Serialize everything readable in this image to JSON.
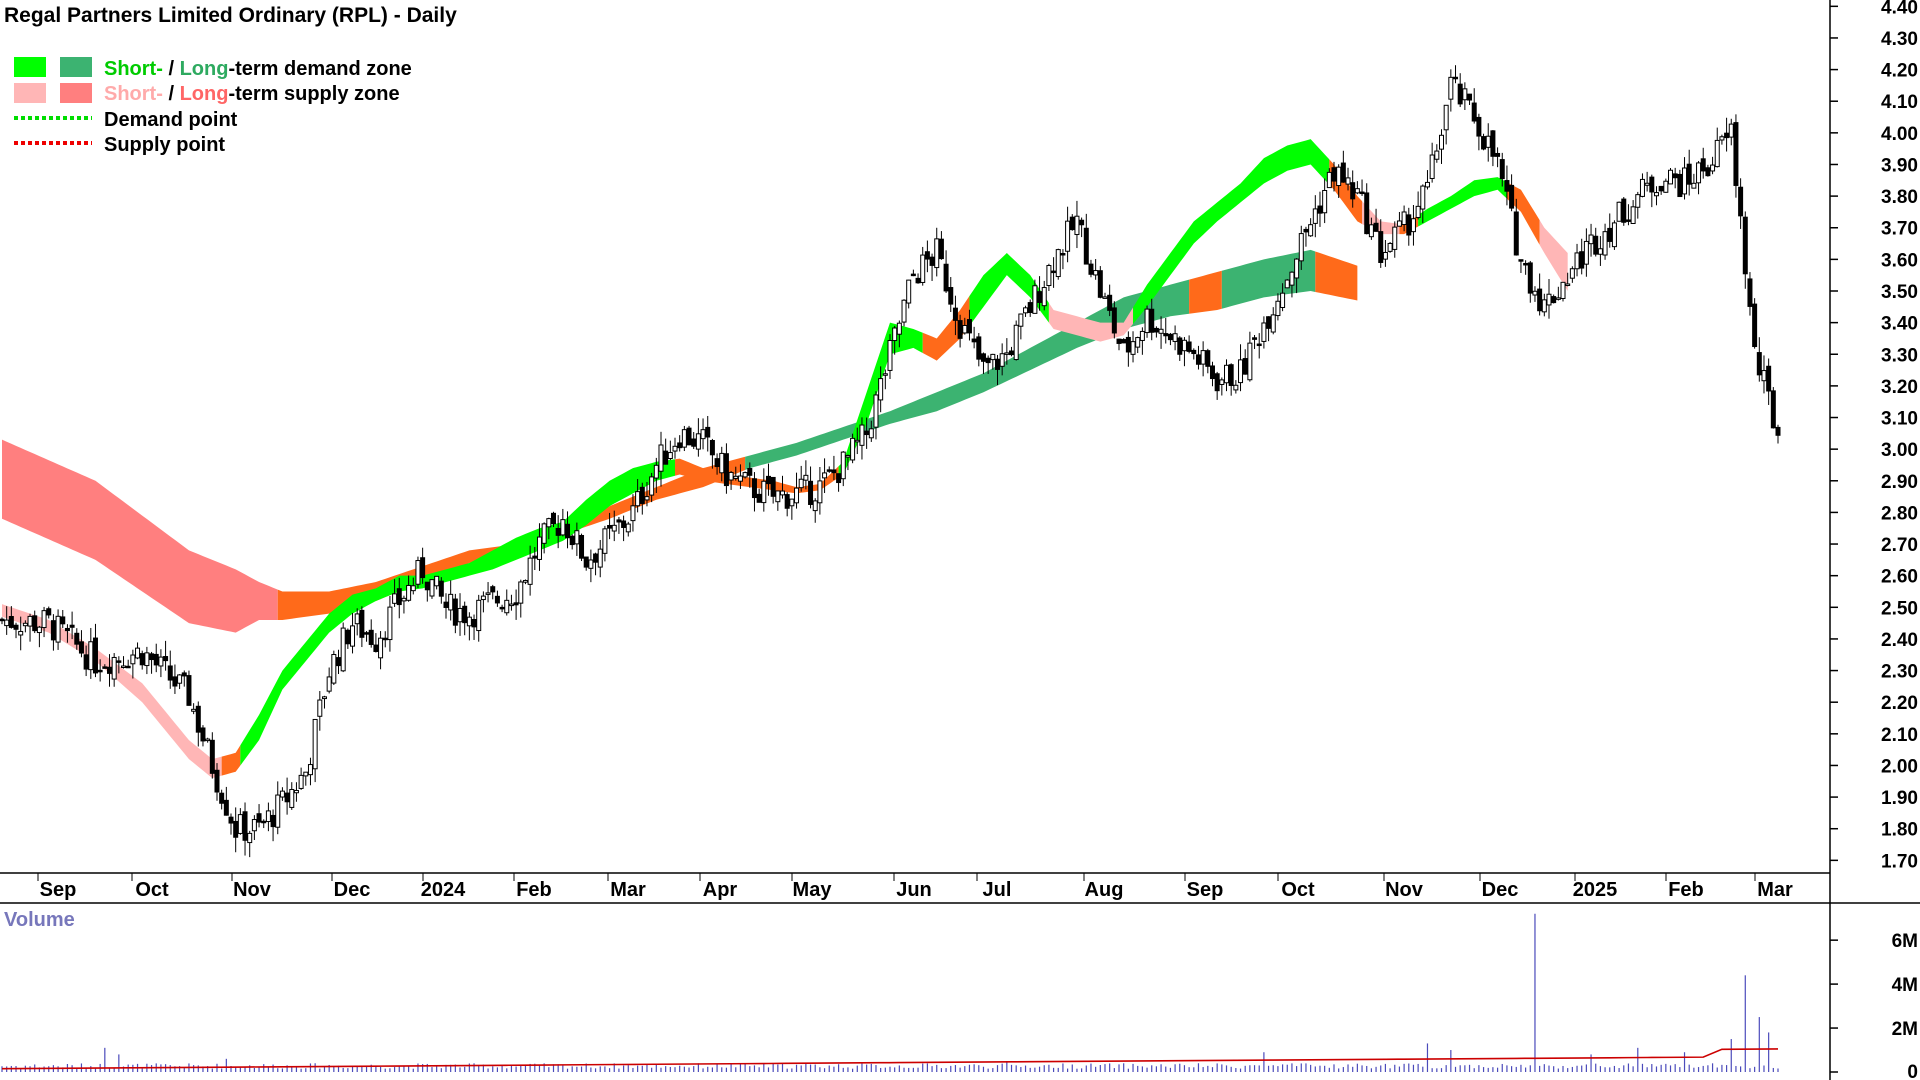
{
  "title": "Regal Partners Limited Ordinary (RPL) - Daily",
  "legend": {
    "demand_zone": {
      "short": "Short-",
      "sep": " / ",
      "long": "Long",
      "rest": "-term demand zone"
    },
    "supply_zone": {
      "short": "Short-",
      "sep": " / ",
      "long": "Long",
      "rest": "-term supply zone"
    },
    "demand_point": "Demand point",
    "supply_point": "Supply point"
  },
  "colors": {
    "short_demand": "#00ff00",
    "long_demand": "#3cb371",
    "short_supply": "#ffb6b6",
    "long_supply": "#ff7f7f",
    "short_transition": "#ff6a1a",
    "long_transition": "#ff6a1a",
    "candle": "#000000",
    "volume_bar": "#4b4bbb",
    "volume_avg": "#cc0000",
    "volume_title": "#7777bb"
  },
  "chart_data": {
    "type": "candlestick",
    "yaxis_ticks": [
      "1.70",
      "1.80",
      "1.90",
      "2.00",
      "2.10",
      "2.20",
      "2.30",
      "2.40",
      "2.50",
      "2.60",
      "2.70",
      "2.80",
      "2.90",
      "3.00",
      "3.10",
      "3.20",
      "3.30",
      "3.40",
      "3.50",
      "3.60",
      "3.70",
      "3.80",
      "3.90",
      "4.00",
      "4.10",
      "4.20",
      "4.30",
      "4.40"
    ],
    "ylim": [
      1.66,
      4.42
    ],
    "xaxis_labels": [
      "Sep",
      "Oct",
      "Nov",
      "Dec",
      "2024",
      "Feb",
      "Mar",
      "Apr",
      "May",
      "Jun",
      "Jul",
      "Aug",
      "Sep",
      "Oct",
      "Nov",
      "Dec",
      "2025",
      "Feb",
      "Mar"
    ],
    "price_path": [
      [
        0,
        2.46
      ],
      [
        10,
        2.45
      ],
      [
        20,
        2.33
      ],
      [
        30,
        2.36
      ],
      [
        40,
        2.22
      ],
      [
        45,
        2.0
      ],
      [
        50,
        1.8
      ],
      [
        55,
        1.8
      ],
      [
        60,
        1.88
      ],
      [
        65,
        1.98
      ],
      [
        70,
        2.3
      ],
      [
        75,
        2.45
      ],
      [
        80,
        2.4
      ],
      [
        85,
        2.52
      ],
      [
        90,
        2.62
      ],
      [
        95,
        2.5
      ],
      [
        100,
        2.48
      ],
      [
        105,
        2.52
      ],
      [
        110,
        2.55
      ],
      [
        115,
        2.7
      ],
      [
        120,
        2.78
      ],
      [
        125,
        2.65
      ],
      [
        130,
        2.72
      ],
      [
        135,
        2.8
      ],
      [
        140,
        2.95
      ],
      [
        145,
        3.05
      ],
      [
        150,
        3.02
      ],
      [
        155,
        2.92
      ],
      [
        160,
        2.88
      ],
      [
        165,
        2.85
      ],
      [
        170,
        2.86
      ],
      [
        175,
        2.88
      ],
      [
        180,
        2.95
      ],
      [
        185,
        3.05
      ],
      [
        190,
        3.3
      ],
      [
        195,
        3.55
      ],
      [
        200,
        3.62
      ],
      [
        205,
        3.4
      ],
      [
        210,
        3.25
      ],
      [
        215,
        3.3
      ],
      [
        220,
        3.45
      ],
      [
        225,
        3.6
      ],
      [
        230,
        3.72
      ],
      [
        235,
        3.5
      ],
      [
        240,
        3.3
      ],
      [
        245,
        3.42
      ],
      [
        250,
        3.36
      ],
      [
        255,
        3.3
      ],
      [
        260,
        3.22
      ],
      [
        265,
        3.24
      ],
      [
        270,
        3.4
      ],
      [
        275,
        3.55
      ],
      [
        280,
        3.72
      ],
      [
        285,
        3.88
      ],
      [
        290,
        3.8
      ],
      [
        295,
        3.62
      ],
      [
        300,
        3.7
      ],
      [
        305,
        3.82
      ],
      [
        310,
        4.15
      ],
      [
        315,
        4.05
      ],
      [
        320,
        3.9
      ],
      [
        325,
        3.6
      ],
      [
        330,
        3.45
      ],
      [
        335,
        3.55
      ],
      [
        340,
        3.65
      ],
      [
        345,
        3.72
      ],
      [
        350,
        3.8
      ],
      [
        355,
        3.86
      ],
      [
        360,
        3.84
      ],
      [
        365,
        3.9
      ],
      [
        370,
        4.0
      ],
      [
        375,
        3.3
      ],
      [
        380,
        3.05
      ]
    ],
    "short_zone_path": [
      [
        0,
        2.47,
        2.51
      ],
      [
        10,
        2.42,
        2.46
      ],
      [
        20,
        2.33,
        2.37
      ],
      [
        30,
        2.2,
        2.26
      ],
      [
        40,
        2.02,
        2.08
      ],
      [
        45,
        1.96,
        2.02
      ],
      [
        50,
        1.98,
        2.04
      ],
      [
        55,
        2.08,
        2.16
      ],
      [
        60,
        2.24,
        2.3
      ],
      [
        65,
        2.33,
        2.39
      ],
      [
        70,
        2.42,
        2.48
      ],
      [
        75,
        2.48,
        2.54
      ],
      [
        80,
        2.52,
        2.56
      ],
      [
        85,
        2.55,
        2.6
      ],
      [
        90,
        2.56,
        2.6
      ],
      [
        95,
        2.58,
        2.62
      ],
      [
        100,
        2.6,
        2.64
      ],
      [
        105,
        2.62,
        2.68
      ],
      [
        110,
        2.65,
        2.72
      ],
      [
        115,
        2.68,
        2.75
      ],
      [
        120,
        2.71,
        2.77
      ],
      [
        125,
        2.76,
        2.84
      ],
      [
        130,
        2.82,
        2.9
      ],
      [
        135,
        2.86,
        2.94
      ],
      [
        140,
        2.9,
        2.96
      ],
      [
        145,
        2.92,
        2.97
      ],
      [
        150,
        2.9,
        2.94
      ],
      [
        155,
        2.89,
        2.92
      ],
      [
        160,
        2.88,
        2.91
      ],
      [
        165,
        2.87,
        2.9
      ],
      [
        170,
        2.86,
        2.88
      ],
      [
        175,
        2.87,
        2.89
      ],
      [
        180,
        2.92,
        2.96
      ],
      [
        185,
        3.08,
        3.18
      ],
      [
        190,
        3.3,
        3.4
      ],
      [
        195,
        3.32,
        3.38
      ],
      [
        200,
        3.28,
        3.35
      ],
      [
        205,
        3.35,
        3.44
      ],
      [
        210,
        3.45,
        3.55
      ],
      [
        215,
        3.55,
        3.62
      ],
      [
        220,
        3.48,
        3.55
      ],
      [
        225,
        3.38,
        3.44
      ],
      [
        230,
        3.36,
        3.42
      ],
      [
        235,
        3.34,
        3.4
      ],
      [
        240,
        3.36,
        3.4
      ],
      [
        245,
        3.45,
        3.52
      ],
      [
        250,
        3.55,
        3.62
      ],
      [
        255,
        3.65,
        3.72
      ],
      [
        260,
        3.72,
        3.78
      ],
      [
        265,
        3.78,
        3.84
      ],
      [
        270,
        3.84,
        3.92
      ],
      [
        275,
        3.88,
        3.96
      ],
      [
        280,
        3.9,
        3.98
      ],
      [
        285,
        3.82,
        3.9
      ],
      [
        290,
        3.72,
        3.8
      ],
      [
        295,
        3.68,
        3.72
      ],
      [
        300,
        3.68,
        3.71
      ],
      [
        305,
        3.72,
        3.76
      ],
      [
        310,
        3.76,
        3.8
      ],
      [
        315,
        3.8,
        3.85
      ],
      [
        320,
        3.82,
        3.86
      ],
      [
        325,
        3.75,
        3.82
      ],
      [
        330,
        3.62,
        3.7
      ],
      [
        335,
        3.5,
        3.62
      ]
    ],
    "long_zone_path": [
      [
        0,
        3.03,
        2.78
      ],
      [
        20,
        2.9,
        2.65
      ],
      [
        40,
        2.68,
        2.45
      ],
      [
        50,
        2.62,
        2.42
      ],
      [
        55,
        2.58,
        2.46
      ],
      [
        60,
        2.55,
        2.46
      ],
      [
        70,
        2.55,
        2.48
      ],
      [
        80,
        2.58,
        2.52
      ],
      [
        90,
        2.63,
        2.58
      ],
      [
        100,
        2.68,
        2.64
      ],
      [
        110,
        2.7,
        2.69
      ],
      [
        120,
        2.74,
        2.73
      ],
      [
        130,
        2.82,
        2.78
      ],
      [
        140,
        2.88,
        2.84
      ],
      [
        150,
        2.94,
        2.88
      ],
      [
        160,
        2.98,
        2.94
      ],
      [
        170,
        3.02,
        2.98
      ],
      [
        180,
        3.07,
        3.03
      ],
      [
        190,
        3.12,
        3.08
      ],
      [
        200,
        3.18,
        3.12
      ],
      [
        210,
        3.24,
        3.18
      ],
      [
        220,
        3.32,
        3.25
      ],
      [
        230,
        3.4,
        3.32
      ],
      [
        240,
        3.48,
        3.38
      ],
      [
        250,
        3.52,
        3.42
      ],
      [
        260,
        3.56,
        3.44
      ],
      [
        270,
        3.6,
        3.48
      ],
      [
        280,
        3.63,
        3.5
      ],
      [
        290,
        3.58,
        3.47
      ]
    ],
    "volume_yticks": [
      "0",
      "2M",
      "4M",
      "6M"
    ],
    "volume_ylim": [
      0,
      7.6
    ]
  }
}
